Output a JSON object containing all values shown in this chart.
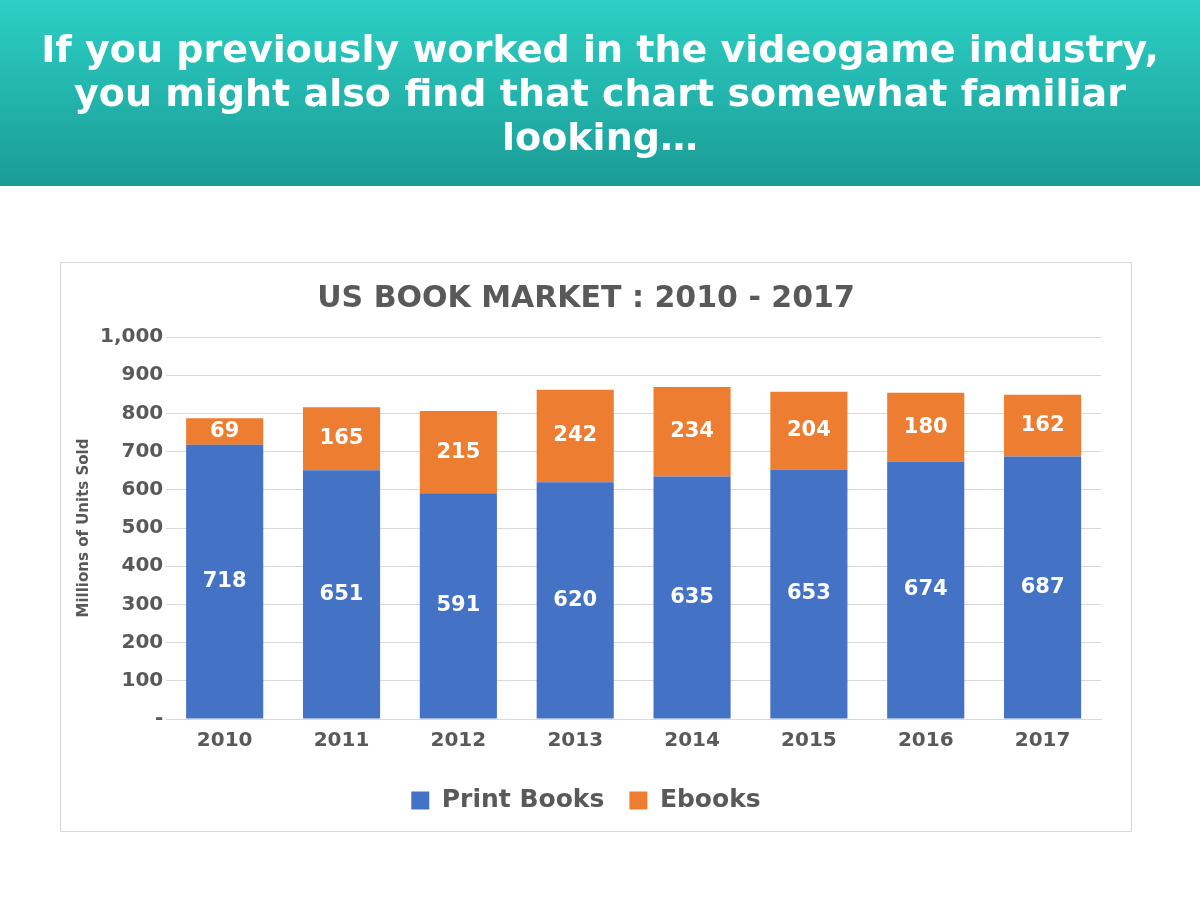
{
  "chart_data": {
    "type": "bar",
    "title": "US BOOK MARKET : 2010 - 2017",
    "ylabel": "Millions of Units Sold",
    "annotations": [
      "If you previously worked in the videogame industry, you might also find that chart somewhat familiar looking…"
    ],
    "categories": [
      "2010",
      "2011",
      "2012",
      "2013",
      "2014",
      "2015",
      "2016",
      "2017"
    ],
    "stacked": true,
    "series": [
      {
        "name": "Print Books",
        "color": "#4472c4",
        "values": [
          718,
          651,
          591,
          620,
          635,
          653,
          674,
          687
        ]
      },
      {
        "name": "Ebooks",
        "color": "#ed7d31",
        "values": [
          69,
          165,
          215,
          242,
          234,
          204,
          180,
          162
        ]
      }
    ],
    "ylim": [
      0,
      1000
    ],
    "yticks": [
      {
        "value": 0,
        "label": "-"
      },
      100,
      200,
      300,
      400,
      500,
      600,
      700,
      800,
      900,
      {
        "value": 1000,
        "label": "1,000"
      }
    ],
    "grid": "y",
    "legend": "bottom",
    "data_labels": true
  }
}
